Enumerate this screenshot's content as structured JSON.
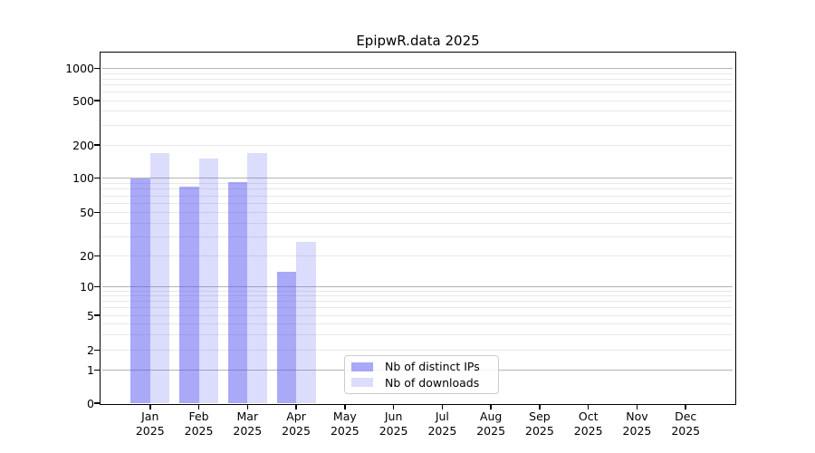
{
  "title": "EpipwR.data 2025",
  "x_axis": {
    "months": [
      "Jan",
      "Feb",
      "Mar",
      "Apr",
      "May",
      "Jun",
      "Jul",
      "Aug",
      "Sep",
      "Oct",
      "Nov",
      "Dec"
    ],
    "year": "2025"
  },
  "y_axis": {
    "ticks": [
      0,
      1,
      2,
      5,
      10,
      20,
      50,
      100,
      200,
      500,
      1000
    ]
  },
  "legend": {
    "items": [
      {
        "label": "Nb of distinct IPs",
        "color_key": "distinct_ips"
      },
      {
        "label": "Nb of downloads",
        "color_key": "downloads"
      }
    ]
  },
  "colors": {
    "distinct_ips": "rgba(80,80,240,0.49)",
    "downloads": "rgba(80,80,240,0.20)",
    "grid_major": "#b3b3b3",
    "grid_minor": "#e8e8e8",
    "axis": "#000000"
  },
  "chart_data": {
    "type": "bar",
    "title": "EpipwR.data 2025",
    "categories": [
      "Jan 2025",
      "Feb 2025",
      "Mar 2025",
      "Apr 2025",
      "May 2025",
      "Jun 2025",
      "Jul 2025",
      "Aug 2025",
      "Sep 2025",
      "Oct 2025",
      "Nov 2025",
      "Dec 2025"
    ],
    "series": [
      {
        "name": "Nb of distinct IPs",
        "values": [
          100,
          85,
          93,
          14,
          null,
          null,
          null,
          null,
          null,
          null,
          null,
          null
        ]
      },
      {
        "name": "Nb of downloads",
        "values": [
          170,
          150,
          170,
          27,
          null,
          null,
          null,
          null,
          null,
          null,
          null,
          null
        ]
      }
    ],
    "xlabel": "",
    "ylabel": "",
    "yscale": "pseudo-log (0,1,2,5,10,20,50,100,200,500,1000)",
    "yticks": [
      0,
      1,
      2,
      5,
      10,
      20,
      50,
      100,
      200,
      500,
      1000
    ],
    "ylim": [
      0,
      1400
    ],
    "grid": "horizontal major gridlines at powers of 10, light minor log gridlines; bars translucent so grid shows through",
    "legend_position": "inside bottom-center"
  }
}
